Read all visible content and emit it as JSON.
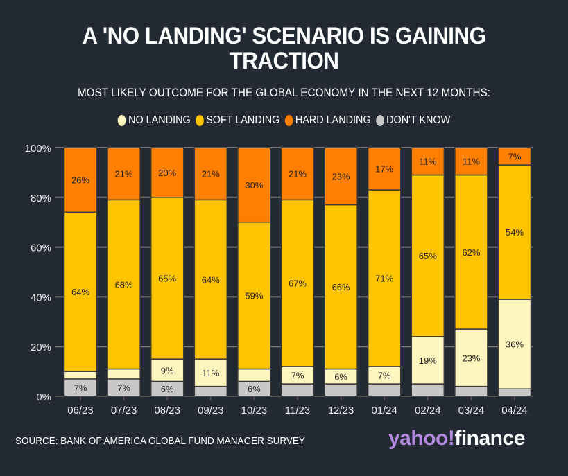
{
  "chart_data": {
    "type": "bar",
    "stacked": true,
    "title": "A 'NO LANDING' SCENARIO IS GAINING TRACTION",
    "subtitle": "MOST LIKELY OUTCOME FOR THE GLOBAL ECONOMY IN THE NEXT 12 MONTHS:",
    "xlabel": "",
    "ylabel": "",
    "ylim": [
      0,
      100
    ],
    "yticks": [
      0,
      20,
      40,
      60,
      80,
      100
    ],
    "ytick_labels": [
      "0%",
      "20%",
      "40%",
      "60%",
      "80%",
      "100%"
    ],
    "grid": true,
    "legend_position": "top-center",
    "categories": [
      "06/23",
      "07/23",
      "08/23",
      "09/23",
      "10/23",
      "11/23",
      "12/23",
      "01/24",
      "02/24",
      "03/24",
      "04/24"
    ],
    "series": [
      {
        "name": "DON'T KNOW",
        "color": "#c8c8c8",
        "values": [
          7,
          7,
          6,
          4,
          6,
          5,
          5,
          5,
          5,
          4,
          3
        ],
        "labels": [
          "7%",
          "7%",
          "6%",
          "",
          "6%",
          "",
          "",
          "",
          "",
          "",
          ""
        ]
      },
      {
        "name": "NO LANDING",
        "color": "#fff5bf",
        "values": [
          3,
          4,
          9,
          11,
          5,
          7,
          6,
          7,
          19,
          23,
          36
        ],
        "labels": [
          "",
          "",
          "9%",
          "11%",
          "",
          "7%",
          "6%",
          "7%",
          "19%",
          "23%",
          "36%"
        ]
      },
      {
        "name": "SOFT LANDING",
        "color": "#ffc400",
        "values": [
          64,
          68,
          65,
          64,
          59,
          67,
          66,
          71,
          65,
          62,
          54
        ],
        "labels": [
          "64%",
          "68%",
          "65%",
          "64%",
          "59%",
          "67%",
          "66%",
          "71%",
          "65%",
          "62%",
          "54%"
        ]
      },
      {
        "name": "HARD LANDING",
        "color": "#ff7f00",
        "values": [
          26,
          21,
          20,
          21,
          30,
          21,
          23,
          17,
          11,
          11,
          7
        ],
        "labels": [
          "26%",
          "21%",
          "20%",
          "21%",
          "30%",
          "21%",
          "23%",
          "17%",
          "11%",
          "11%",
          "7%"
        ]
      }
    ],
    "legend_order": [
      "NO LANDING",
      "SOFT LANDING",
      "HARD LANDING",
      "DON'T KNOW"
    ]
  },
  "legend": [
    {
      "label": "NO LANDING",
      "color": "#fff5bf"
    },
    {
      "label": "SOFT LANDING",
      "color": "#ffc400"
    },
    {
      "label": "HARD LANDING",
      "color": "#ff7f00"
    },
    {
      "label": "DON'T KNOW",
      "color": "#c8c8c8"
    }
  ],
  "header": {
    "title_line1": "A 'NO LANDING' SCENARIO IS GAINING",
    "title_line2": "TRACTION",
    "subtitle": "MOST LIKELY OUTCOME FOR THE GLOBAL ECONOMY IN THE NEXT 12 MONTHS:"
  },
  "footer": {
    "source": "SOURCE: BANK OF AMERICA GLOBAL FUND MANAGER SURVEY",
    "logo_yahoo": "yahoo!",
    "logo_finance": "finance"
  }
}
